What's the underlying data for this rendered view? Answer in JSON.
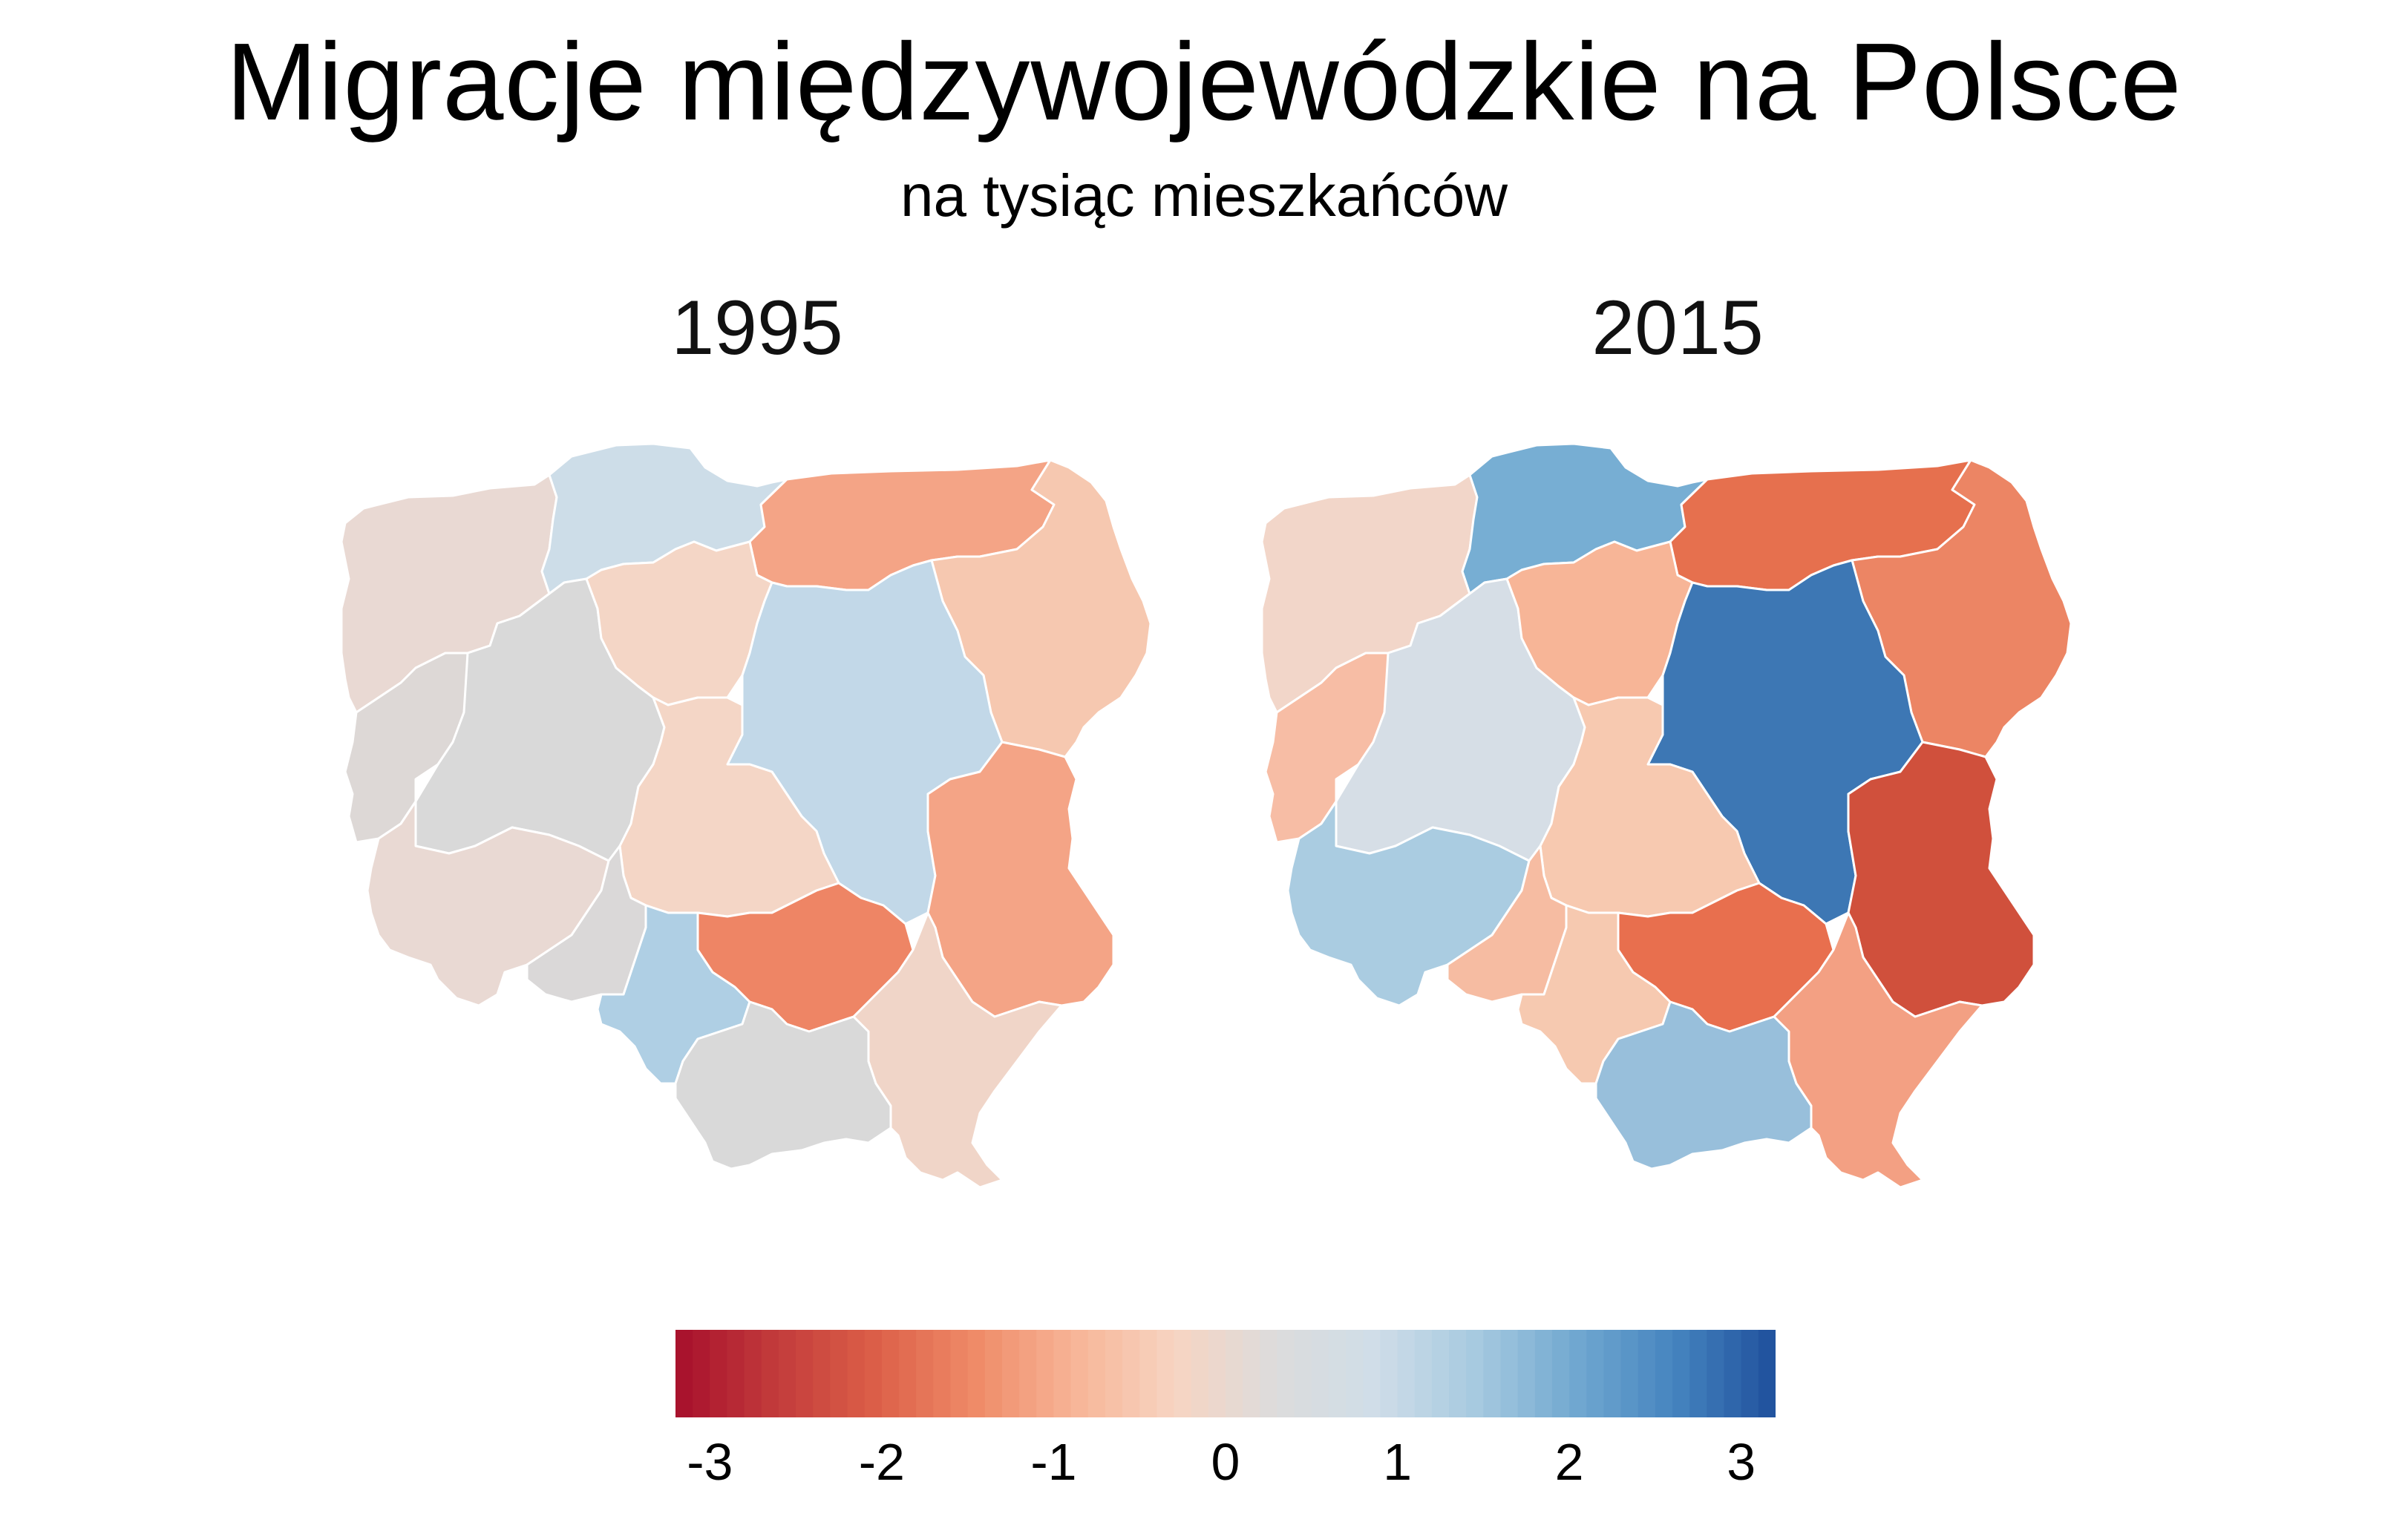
{
  "title": "Migracje międzywojewódzkie na Polsce",
  "subtitle": "na tysiąc mieszkańców",
  "maps": [
    {
      "year": "1995",
      "regions": {
        "zachodniopomorskie": {
          "value": -0.3,
          "color": "#e9d9d3"
        },
        "pomorskie": {
          "value": 0.4,
          "color": "#cddde8"
        },
        "warminsko-mazurskie": {
          "value": -1.2,
          "color": "#f4a486"
        },
        "podlaskie": {
          "value": -0.7,
          "color": "#f6c8b0"
        },
        "lubuskie": {
          "value": -0.1,
          "color": "#ddd8d6"
        },
        "wielkopolskie": {
          "value": 0.0,
          "color": "#d9d9d9"
        },
        "kujawsko-pomorskie": {
          "value": -0.6,
          "color": "#f4d6c6"
        },
        "mazowieckie": {
          "value": 0.6,
          "color": "#c2d8e8"
        },
        "lodzkie": {
          "value": -0.5,
          "color": "#f4d6c6"
        },
        "lubelskie": {
          "value": -1.2,
          "color": "#f4a486"
        },
        "dolnoslaskie": {
          "value": -0.3,
          "color": "#e9d9d3"
        },
        "opolskie": {
          "value": 0.0,
          "color": "#dad8d8"
        },
        "slaskie": {
          "value": 0.8,
          "color": "#afcfe4"
        },
        "swietokrzyskie": {
          "value": -1.6,
          "color": "#ee8565"
        },
        "malopolskie": {
          "value": 0.0,
          "color": "#d9d9d9"
        },
        "podkarpackie": {
          "value": -0.5,
          "color": "#f0d5c8"
        }
      }
    },
    {
      "year": "2015",
      "regions": {
        "zachodniopomorskie": {
          "value": -0.5,
          "color": "#f2d6c9"
        },
        "pomorskie": {
          "value": 1.6,
          "color": "#77aed3"
        },
        "warminsko-mazurskie": {
          "value": -2.0,
          "color": "#e6704e"
        },
        "podlaskie": {
          "value": -1.6,
          "color": "#ec8564"
        },
        "lubuskie": {
          "value": -0.8,
          "color": "#f7bda5"
        },
        "wielkopolskie": {
          "value": 0.2,
          "color": "#d6dee6"
        },
        "kujawsko-pomorskie": {
          "value": -1.0,
          "color": "#f7b597"
        },
        "mazowieckie": {
          "value": 2.7,
          "color": "#3d77b4"
        },
        "lodzkie": {
          "value": -0.7,
          "color": "#f7c9b0"
        },
        "lubelskie": {
          "value": -2.6,
          "color": "#d0503c"
        },
        "dolnoslaskie": {
          "value": 0.8,
          "color": "#aacce1"
        },
        "opolskie": {
          "value": -0.8,
          "color": "#f6bca2"
        },
        "slaskie": {
          "value": -0.6,
          "color": "#f6c9b0"
        },
        "swietokrzyskie": {
          "value": -2.0,
          "color": "#e86f4e"
        },
        "malopolskie": {
          "value": 1.0,
          "color": "#98bfdb"
        },
        "podkarpackie": {
          "value": -1.2,
          "color": "#f3a083"
        }
      }
    }
  ],
  "colorbar": {
    "min": -3.2,
    "max": 3.2,
    "ticks": [
      "-3",
      "-2",
      "-1",
      "0",
      "1",
      "2",
      "3"
    ],
    "tick_values": [
      -3,
      -2,
      -1,
      0,
      1,
      2,
      3
    ],
    "colors": [
      "#a70f2c",
      "#c23b3b",
      "#dc5f48",
      "#ef8b68",
      "#f7b597",
      "#f7d4c2",
      "#dcdcdc",
      "#cfdde8",
      "#a7cae0",
      "#71a8d0",
      "#4584bf",
      "#1f4f9c"
    ]
  }
}
